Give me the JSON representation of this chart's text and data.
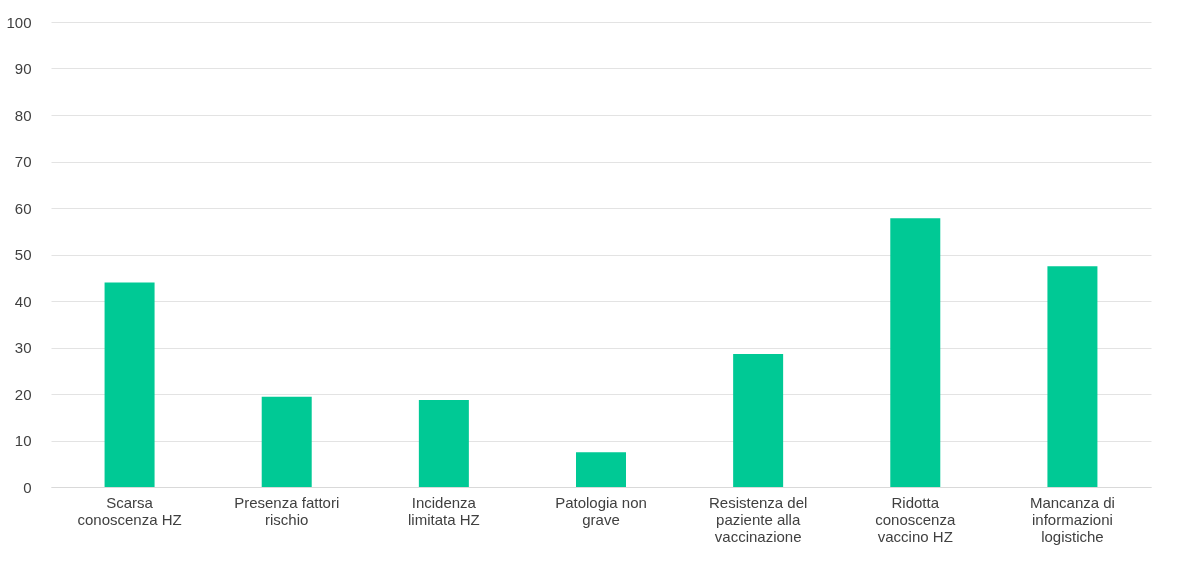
{
  "chart_data": {
    "type": "bar",
    "categories": [
      "Scarsa conoscenza HZ",
      "Presenza fattori rischio",
      "Incidenza limitata HZ",
      "Patologia non grave",
      "Resistenza del paziente alla vaccinazione",
      "Ridotta conoscenza vaccino HZ",
      "Mancanza di informazioni logistiche"
    ],
    "values": [
      44,
      19.4,
      18.7,
      7.5,
      28.6,
      57.8,
      47.5
    ],
    "color": "#00c995",
    "ylim": [
      0,
      100
    ],
    "yticks": [
      0,
      10,
      20,
      30,
      40,
      50,
      60,
      70,
      80,
      90,
      100
    ],
    "grid": "y"
  }
}
